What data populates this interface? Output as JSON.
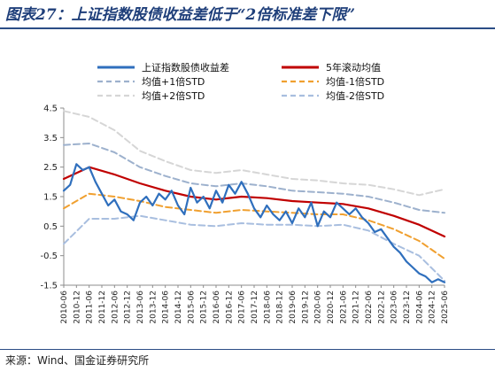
{
  "title": "图表27：上证指数股债收益差低于“2倍标准差下限”",
  "source": "来源：Wind、国金证券研究所",
  "colors": {
    "spread": "#2f6fbd",
    "ma5y": "#c00000",
    "plus1": "#9db1cd",
    "minus1": "#f0a030",
    "plus2": "#d6d6d6",
    "minus2": "#a8bedf",
    "title": "#1f3f7a"
  },
  "chart_data": {
    "type": "line",
    "title": "",
    "xlabel": "",
    "ylabel": "",
    "ylim": [
      -1.5,
      4.5
    ],
    "y_ticks": [
      "4.5",
      "3.5",
      "2.5",
      "1.5",
      "0.5",
      "-0.5",
      "-1.5"
    ],
    "x_ticks": [
      "2010-06",
      "2010-12",
      "2011-06",
      "2011-12",
      "2012-06",
      "2012-12",
      "2013-06",
      "2013-12",
      "2014-06",
      "2014-12",
      "2015-06",
      "2015-12",
      "2016-06",
      "2016-12",
      "2017-06",
      "2017-12",
      "2018-06",
      "2018-12",
      "2019-06",
      "2019-12",
      "2020-06",
      "2020-12",
      "2021-06",
      "2021-12",
      "2022-06",
      "2022-12",
      "2023-06",
      "2023-12",
      "2024-06",
      "2024-12",
      "2025-06"
    ],
    "grid": false,
    "legend_position": "top",
    "series": [
      {
        "name": "上证指数股债收益差",
        "style": "solid-thin",
        "x": [
          "2010-06",
          "2010-09",
          "2010-12",
          "2011-03",
          "2011-06",
          "2011-09",
          "2011-12",
          "2012-03",
          "2012-06",
          "2012-09",
          "2012-12",
          "2013-03",
          "2013-06",
          "2013-09",
          "2013-12",
          "2014-03",
          "2014-06",
          "2014-09",
          "2014-12",
          "2015-03",
          "2015-06",
          "2015-09",
          "2015-12",
          "2016-03",
          "2016-06",
          "2016-09",
          "2016-12",
          "2017-03",
          "2017-06",
          "2017-09",
          "2017-12",
          "2018-03",
          "2018-06",
          "2018-09",
          "2018-12",
          "2019-03",
          "2019-06",
          "2019-09",
          "2019-12",
          "2020-03",
          "2020-06",
          "2020-09",
          "2020-12",
          "2021-03",
          "2021-06",
          "2021-09",
          "2021-12",
          "2022-03",
          "2022-06",
          "2022-09",
          "2022-12",
          "2023-03",
          "2023-06",
          "2023-09",
          "2023-12",
          "2024-03",
          "2024-06",
          "2024-09",
          "2024-12",
          "2025-03",
          "2025-06"
        ],
        "values": [
          1.7,
          1.9,
          2.6,
          2.4,
          2.5,
          2.0,
          1.6,
          1.2,
          1.4,
          1.0,
          0.9,
          0.7,
          1.3,
          1.5,
          1.2,
          1.6,
          1.4,
          1.7,
          1.2,
          0.9,
          1.8,
          1.3,
          1.5,
          1.1,
          1.7,
          1.3,
          1.9,
          1.6,
          2.0,
          1.6,
          1.1,
          0.8,
          1.2,
          0.9,
          0.7,
          1.0,
          0.6,
          1.1,
          0.8,
          1.3,
          0.5,
          1.0,
          0.8,
          1.3,
          1.1,
          0.9,
          1.1,
          0.8,
          0.6,
          0.3,
          0.4,
          0.1,
          -0.2,
          -0.4,
          -0.7,
          -0.9,
          -1.1,
          -1.2,
          -1.4,
          -1.3,
          -1.4
        ]
      },
      {
        "name": "5年滚动均值",
        "style": "solid-thick",
        "x": [
          "2010-06",
          "2011-06",
          "2012-06",
          "2013-06",
          "2014-06",
          "2015-06",
          "2016-06",
          "2017-06",
          "2018-06",
          "2019-06",
          "2020-06",
          "2021-06",
          "2022-06",
          "2023-06",
          "2024-06",
          "2025-06"
        ],
        "values": [
          2.1,
          2.5,
          2.25,
          1.95,
          1.7,
          1.5,
          1.4,
          1.5,
          1.45,
          1.35,
          1.3,
          1.25,
          1.1,
          0.85,
          0.55,
          0.15
        ]
      },
      {
        "name": "均值+1倍STD",
        "style": "dashed",
        "x": [
          "2010-06",
          "2011-06",
          "2012-06",
          "2013-06",
          "2014-06",
          "2015-06",
          "2016-06",
          "2017-06",
          "2018-06",
          "2019-06",
          "2020-06",
          "2021-06",
          "2022-06",
          "2023-06",
          "2024-06",
          "2025-06"
        ],
        "values": [
          3.25,
          3.3,
          3.0,
          2.5,
          2.2,
          1.95,
          1.85,
          1.95,
          1.85,
          1.7,
          1.65,
          1.6,
          1.5,
          1.3,
          1.05,
          0.95
        ]
      },
      {
        "name": "均值-1倍STD",
        "style": "dashed",
        "x": [
          "2010-06",
          "2011-06",
          "2012-06",
          "2013-06",
          "2014-06",
          "2015-06",
          "2016-06",
          "2017-06",
          "2018-06",
          "2019-06",
          "2020-06",
          "2021-06",
          "2022-06",
          "2023-06",
          "2024-06",
          "2025-06"
        ],
        "values": [
          1.1,
          1.6,
          1.5,
          1.35,
          1.15,
          1.05,
          0.95,
          1.05,
          1.0,
          0.95,
          0.9,
          0.9,
          0.7,
          0.4,
          0.0,
          -0.6
        ]
      },
      {
        "name": "均值+2倍STD",
        "style": "dashed",
        "x": [
          "2010-06",
          "2011-06",
          "2012-06",
          "2013-06",
          "2014-06",
          "2015-06",
          "2016-06",
          "2017-06",
          "2018-06",
          "2019-06",
          "2020-06",
          "2021-06",
          "2022-06",
          "2023-06",
          "2024-06",
          "2025-06"
        ],
        "values": [
          4.4,
          4.2,
          3.75,
          3.05,
          2.7,
          2.4,
          2.3,
          2.4,
          2.25,
          2.1,
          2.05,
          1.95,
          1.9,
          1.75,
          1.55,
          1.75
        ]
      },
      {
        "name": "均值-2倍STD",
        "style": "dashed",
        "x": [
          "2010-06",
          "2011-06",
          "2012-06",
          "2013-06",
          "2014-06",
          "2015-06",
          "2016-06",
          "2017-06",
          "2018-06",
          "2019-06",
          "2020-06",
          "2021-06",
          "2022-06",
          "2023-06",
          "2024-06",
          "2025-06"
        ],
        "values": [
          -0.1,
          0.75,
          0.75,
          0.85,
          0.7,
          0.55,
          0.5,
          0.6,
          0.55,
          0.55,
          0.5,
          0.55,
          0.35,
          -0.1,
          -0.5,
          -1.35
        ]
      }
    ]
  }
}
